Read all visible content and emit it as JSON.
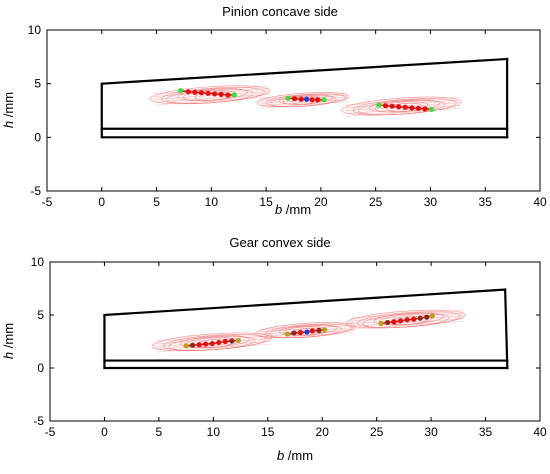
{
  "chart_data": [
    {
      "type": "scatter",
      "title": "Pinion concave side",
      "xlabel_var": "b",
      "xlabel_unit": " /mm",
      "ylabel_var": "h",
      "ylabel_unit": " /mm",
      "xlim": [
        -5,
        40
      ],
      "ylim": [
        -5,
        10
      ],
      "xticks": [
        "-5",
        "0",
        "5",
        "10",
        "15",
        "20",
        "25",
        "30",
        "35",
        "40"
      ],
      "yticks": [
        "-5",
        "0",
        "5",
        "10"
      ],
      "grid": false,
      "outline_colors": "#000000",
      "tooth_outline": {
        "top": [
          [
            0,
            5.0
          ],
          [
            37,
            7.3
          ]
        ],
        "right": [
          [
            37,
            7.3
          ],
          [
            37,
            0.0
          ]
        ],
        "bottom_upper": [
          [
            0,
            0.8
          ],
          [
            37,
            0.8
          ]
        ],
        "bottom_lower": [
          [
            0,
            0.0
          ],
          [
            37,
            0.0
          ]
        ]
      },
      "contact_patches": [
        {
          "center": [
            10.0,
            3.9
          ],
          "half_length": 5.5,
          "half_height": 0.75,
          "tilt_deg": -4,
          "color": "#f08080"
        },
        {
          "center": [
            18.5,
            3.45
          ],
          "half_length": 4.2,
          "half_height": 0.6,
          "tilt_deg": -4,
          "color": "#f08080"
        },
        {
          "center": [
            27.5,
            2.85
          ],
          "half_length": 5.5,
          "half_height": 0.75,
          "tilt_deg": -4,
          "color": "#f08080"
        }
      ],
      "contact_paths": [
        {
          "x": [
            7.2,
            7.9,
            8.5,
            9.1,
            9.7,
            10.3,
            10.9,
            11.5,
            12.1
          ],
          "y": [
            4.35,
            4.25,
            4.2,
            4.15,
            4.1,
            4.05,
            4.0,
            3.95,
            3.95
          ],
          "colors": [
            "#3cdc3c",
            "#e01010",
            "#e01010",
            "#e01010",
            "#e01010",
            "#e01010",
            "#e01010",
            "#e01010",
            "#3cdc3c"
          ]
        },
        {
          "x": [
            17.0,
            17.6,
            18.2,
            18.7,
            19.2,
            19.7,
            20.3
          ],
          "y": [
            3.65,
            3.6,
            3.55,
            3.55,
            3.5,
            3.5,
            3.5
          ],
          "colors": [
            "#3cdc3c",
            "#e01010",
            "#e01010",
            "#1f3bd6",
            "#e01010",
            "#e01010",
            "#3cdc3c"
          ]
        },
        {
          "x": [
            25.3,
            25.9,
            26.5,
            27.1,
            27.7,
            28.3,
            28.9,
            29.5,
            30.1
          ],
          "y": [
            3.0,
            2.95,
            2.9,
            2.85,
            2.8,
            2.75,
            2.7,
            2.65,
            2.6
          ],
          "colors": [
            "#3cdc3c",
            "#e01010",
            "#e01010",
            "#e01010",
            "#e01010",
            "#e01010",
            "#e01010",
            "#e01010",
            "#3cdc3c"
          ]
        }
      ]
    },
    {
      "type": "scatter",
      "title": "Gear convex side",
      "xlabel_var": "b",
      "xlabel_unit": " /mm",
      "ylabel_var": "h",
      "ylabel_unit": " /mm",
      "xlim": [
        -5,
        40
      ],
      "ylim": [
        -5,
        10
      ],
      "xticks": [
        "-5",
        "0",
        "5",
        "10",
        "15",
        "20",
        "25",
        "30",
        "35",
        "40"
      ],
      "yticks": [
        "-5",
        "0",
        "5",
        "10"
      ],
      "grid": false,
      "outline_colors": "#000000",
      "tooth_outline": {
        "top": [
          [
            0,
            5.0
          ],
          [
            36.8,
            7.4
          ]
        ],
        "right": [
          [
            36.8,
            7.4
          ],
          [
            37,
            0.0
          ]
        ],
        "bottom_upper": [
          [
            0,
            0.7
          ],
          [
            37,
            0.7
          ]
        ],
        "bottom_lower": [
          [
            0,
            0.0
          ],
          [
            37,
            0.0
          ]
        ]
      },
      "contact_patches": [
        {
          "center": [
            10.0,
            2.4
          ],
          "half_length": 5.5,
          "half_height": 0.75,
          "tilt_deg": -4,
          "color": "#f08080"
        },
        {
          "center": [
            18.6,
            3.5
          ],
          "half_length": 4.6,
          "half_height": 0.65,
          "tilt_deg": -4,
          "color": "#f08080"
        },
        {
          "center": [
            27.8,
            4.55
          ],
          "half_length": 5.5,
          "half_height": 0.75,
          "tilt_deg": -4,
          "color": "#f08080"
        }
      ],
      "contact_paths": [
        {
          "x": [
            7.5,
            8.1,
            8.7,
            9.3,
            9.9,
            10.5,
            11.1,
            11.7,
            12.3
          ],
          "y": [
            2.1,
            2.15,
            2.2,
            2.25,
            2.3,
            2.4,
            2.5,
            2.55,
            2.6
          ],
          "colors": [
            "#b8a020",
            "#8b2a1a",
            "#e01010",
            "#e01010",
            "#e01010",
            "#e01010",
            "#e01010",
            "#8b2a1a",
            "#b8a020"
          ]
        },
        {
          "x": [
            16.8,
            17.4,
            18.0,
            18.6,
            19.1,
            19.7,
            20.2
          ],
          "y": [
            3.2,
            3.3,
            3.35,
            3.4,
            3.5,
            3.55,
            3.6
          ],
          "colors": [
            "#b8a020",
            "#8b2a1a",
            "#e01010",
            "#1f3bd6",
            "#e01010",
            "#8b2a1a",
            "#b8a020"
          ]
        },
        {
          "x": [
            25.4,
            26.0,
            26.6,
            27.2,
            27.8,
            28.4,
            29.0,
            29.6,
            30.1
          ],
          "y": [
            4.2,
            4.3,
            4.35,
            4.45,
            4.55,
            4.6,
            4.7,
            4.8,
            4.9
          ],
          "colors": [
            "#b8a020",
            "#8b2a1a",
            "#e01010",
            "#e01010",
            "#e01010",
            "#e01010",
            "#8b2a1a",
            "#8b2a1a",
            "#b8a020"
          ]
        }
      ]
    }
  ]
}
